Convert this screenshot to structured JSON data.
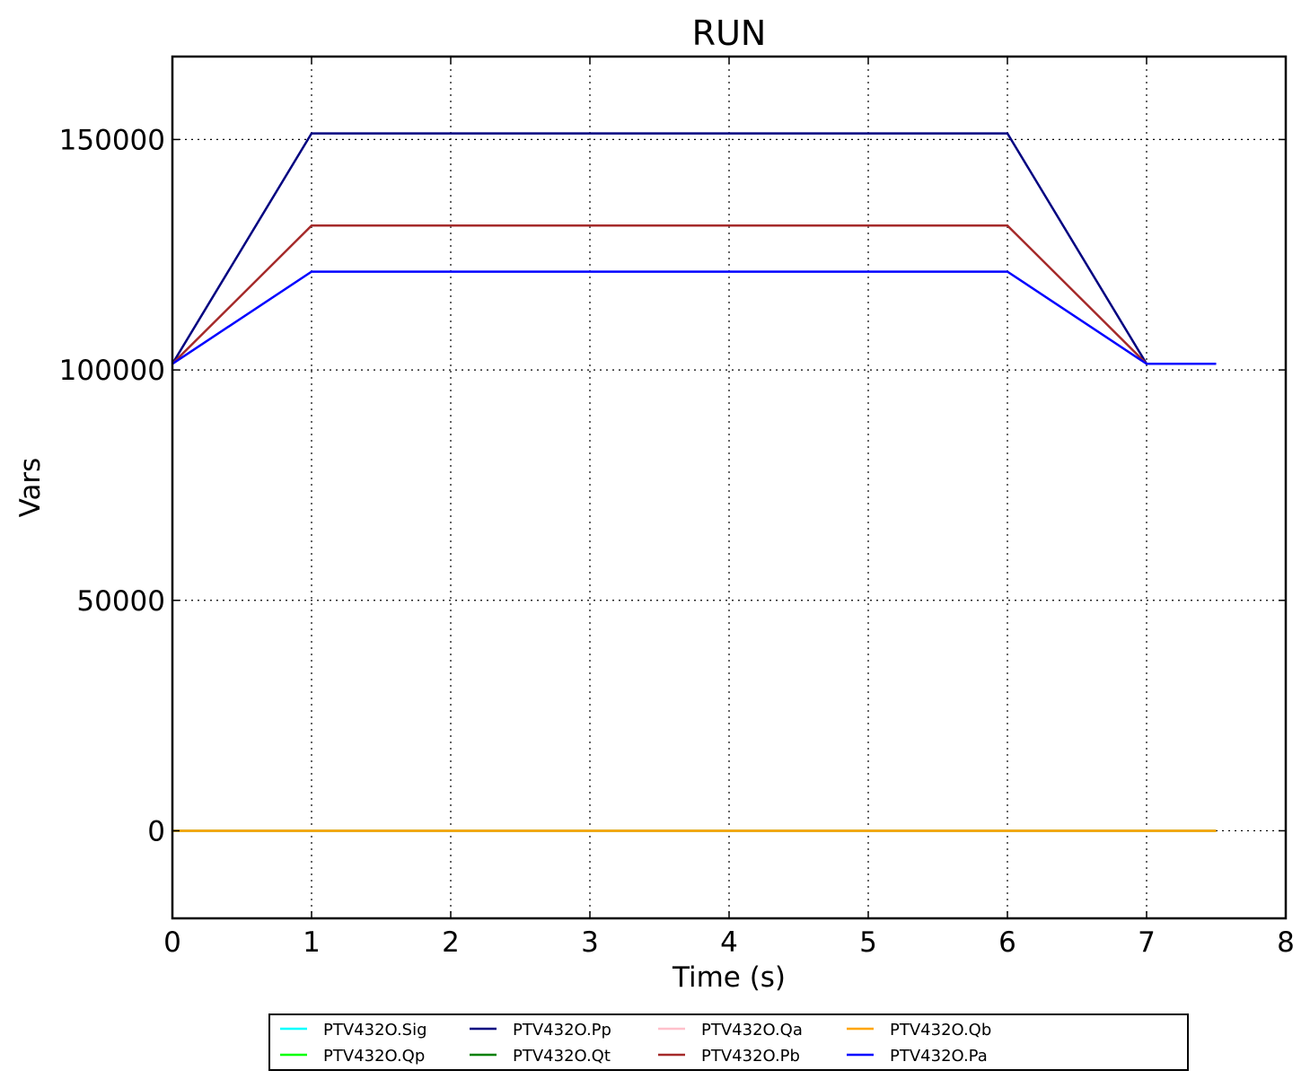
{
  "chart_data": {
    "type": "line",
    "title": "RUN",
    "xlabel": "Time (s)",
    "ylabel": "Vars",
    "xlim": [
      0,
      8
    ],
    "ylim": [
      -19000,
      168000
    ],
    "xticks": [
      0,
      1,
      2,
      3,
      4,
      5,
      6,
      7,
      8
    ],
    "yticks": [
      0,
      50000,
      100000,
      150000
    ],
    "grid": true,
    "legend_position": "below",
    "series": [
      {
        "name": "PTV432O.Sig",
        "color": "#00ffff",
        "x": [
          0,
          7.5
        ],
        "y": [
          0,
          0
        ]
      },
      {
        "name": "PTV432O.Qp",
        "color": "#00ff00",
        "x": [
          0,
          7.5
        ],
        "y": [
          0,
          0
        ]
      },
      {
        "name": "PTV432O.Pp",
        "color": "#000080",
        "x": [
          0,
          1,
          6,
          7,
          7.5
        ],
        "y": [
          101325,
          151325,
          151325,
          101325,
          101325
        ]
      },
      {
        "name": "PTV432O.Qt",
        "color": "#008000",
        "x": [
          0,
          7.5
        ],
        "y": [
          0,
          0
        ]
      },
      {
        "name": "PTV432O.Qa",
        "color": "#ffc0cb",
        "x": [
          0,
          7.5
        ],
        "y": [
          0,
          0
        ]
      },
      {
        "name": "PTV432O.Pb",
        "color": "#a52a2a",
        "x": [
          0,
          1,
          6,
          7,
          7.5
        ],
        "y": [
          101325,
          131325,
          131325,
          101325,
          101325
        ]
      },
      {
        "name": "PTV432O.Qb",
        "color": "#ffa500",
        "x": [
          0,
          7.5
        ],
        "y": [
          0,
          0
        ]
      },
      {
        "name": "PTV432O.Pa",
        "color": "#0000ff",
        "x": [
          0,
          1,
          6,
          7,
          7.5
        ],
        "y": [
          101325,
          121325,
          121325,
          101325,
          101325
        ]
      }
    ]
  }
}
